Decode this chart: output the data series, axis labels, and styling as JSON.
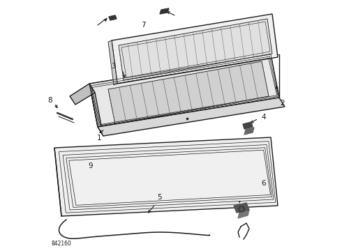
{
  "bg_color": "#ffffff",
  "line_color": "#1a1a1a",
  "text_color": "#1a1a1a",
  "diagram_id": "842160",
  "figsize": [
    4.9,
    3.6
  ],
  "dpi": 100
}
